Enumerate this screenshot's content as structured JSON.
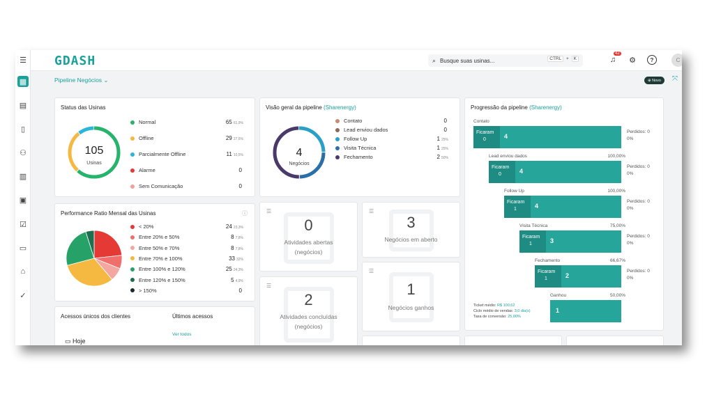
{
  "app": {
    "logo": "GDASH"
  },
  "search": {
    "placeholder": "Busque suas usinas...",
    "kbd1": "CTRL",
    "plus": "+",
    "kbd2": "K"
  },
  "notifications": {
    "count": "42"
  },
  "avatar": {
    "initial": "C"
  },
  "breadcrumb": {
    "label": "Pipeline Negócios ⌄"
  },
  "news_button": {
    "label": "⊕ Novo"
  },
  "status_usinas": {
    "title": "Status das Usinas",
    "total": "105",
    "total_label": "Usinas",
    "items": [
      {
        "label": "Normal",
        "value": "65",
        "pct": "61,9%",
        "color": "#26b36b"
      },
      {
        "label": "Offline",
        "value": "29",
        "pct": "27,6%",
        "color": "#f5b942"
      },
      {
        "label": "Parcialmente Offline",
        "value": "11",
        "pct": "10,5%",
        "color": "#29b6d8"
      },
      {
        "label": "Alarme",
        "value": "0",
        "pct": "",
        "color": "#e53935"
      },
      {
        "label": "Sem Comunicação",
        "value": "0",
        "pct": "",
        "color": "#f4a09a"
      }
    ]
  },
  "performance": {
    "title": "Performance Ratio Mensal das Usinas",
    "items": [
      {
        "label": "< 20%",
        "value": "24",
        "pct": "23,3%",
        "color": "#e53935"
      },
      {
        "label": "Entre 20% e 50%",
        "value": "8",
        "pct": "7,8%",
        "color": "#ef6f6c"
      },
      {
        "label": "Entre 50% e 70%",
        "value": "8",
        "pct": "7,8%",
        "color": "#f4a7a0"
      },
      {
        "label": "Entre 70% e 100%",
        "value": "33",
        "pct": "32%",
        "color": "#f5b942"
      },
      {
        "label": "Entre 100% e 120%",
        "value": "25",
        "pct": "24,3%",
        "color": "#26a269"
      },
      {
        "label": "Entre 120% e 150%",
        "value": "5",
        "pct": "4,9%",
        "color": "#1e6f4f"
      },
      {
        "label": "> 150%",
        "value": "0",
        "pct": "",
        "color": "#1b2a2a"
      }
    ]
  },
  "acessos": {
    "title": "Acessos únicos dos clientes",
    "ultimos": "Últimos acessos",
    "ver_todos": "Ver todos",
    "hoje": "Hoje"
  },
  "visao_geral": {
    "title": "Visão geral da pipeline",
    "company": "(Sharenergy)",
    "total": "4",
    "total_label": "Negócios",
    "items": [
      {
        "label": "Contato",
        "value": "0",
        "pct": "",
        "color": "#c98a7a"
      },
      {
        "label": "Lead enviou dados",
        "value": "0",
        "pct": "",
        "color": "#8a6a5a"
      },
      {
        "label": "Follow Up",
        "value": "1",
        "pct": "25%",
        "color": "#29a0c8"
      },
      {
        "label": "Visita Técnica",
        "value": "1",
        "pct": "25%",
        "color": "#2a6fa8"
      },
      {
        "label": "Fechamento",
        "value": "2",
        "pct": "50%",
        "color": "#4a3a6a"
      }
    ]
  },
  "minis": {
    "abertas": {
      "num": "0",
      "l1": "Atividades abertas",
      "l2": "(negócios)"
    },
    "em_aberto": {
      "num": "3",
      "l1": "Negócios em aberto"
    },
    "concluidas": {
      "num": "2",
      "l1": "Atividades concluídas",
      "l2": "(negócios)"
    },
    "ganhos": {
      "num": "1",
      "l1": "Negócios ganhos"
    }
  },
  "progressao": {
    "title": "Progressão da pipeline",
    "company": "(Sharenergy)",
    "ficaram": "Ficaram",
    "perdidos": "Perdidos: 0",
    "zero_pct": "0%",
    "stages": [
      {
        "name": "Contato",
        "pct": "",
        "ficaram": "0",
        "count": "4"
      },
      {
        "name": "Lead enviou dados",
        "pct": "100,00%",
        "ficaram": "0",
        "count": "4"
      },
      {
        "name": "Follow Up",
        "pct": "100,00%",
        "ficaram": "1",
        "count": "4"
      },
      {
        "name": "Visita Técnica",
        "pct": "75,00%",
        "ficaram": "1",
        "count": "3"
      },
      {
        "name": "Fechamento",
        "pct": "66,67%",
        "ficaram": "1",
        "count": "2"
      },
      {
        "name": "Ganhou",
        "pct": "50,00%",
        "ficaram": "",
        "count": "1"
      }
    ],
    "ticket_label": "Ticket médio:",
    "ticket_value": "R$ 100,62",
    "ciclo_label": "Ciclo médio de vendas:",
    "ciclo_value": "3,0 dia(s)",
    "taxa_label": "Taxa de conversão:",
    "taxa_value": "25,00%"
  }
}
